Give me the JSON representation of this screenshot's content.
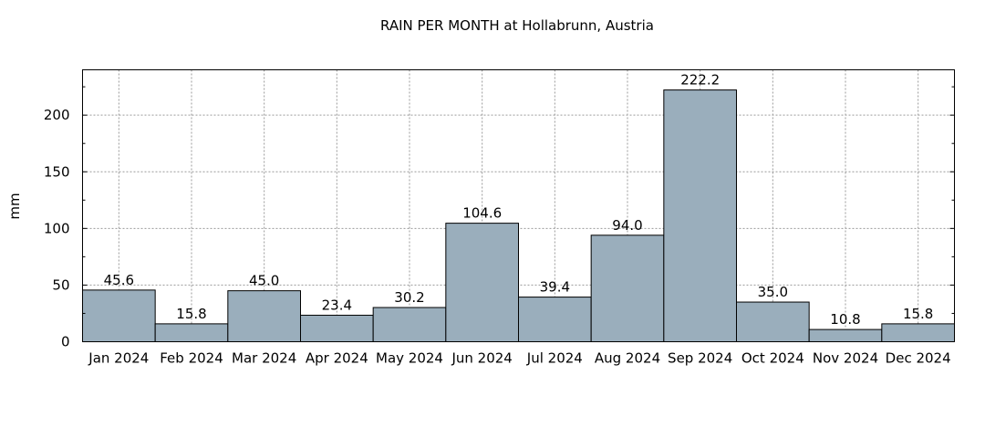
{
  "chart_data": {
    "type": "bar",
    "title": "RAIN PER MONTH at Hollabrunn, Austria",
    "xlabel": "",
    "ylabel": "mm",
    "ylim": [
      0,
      240
    ],
    "yticks": [
      0,
      50,
      100,
      150,
      200
    ],
    "grid": true,
    "bar_color": "#9aaebc",
    "categories": [
      "Jan 2024",
      "Feb 2024",
      "Mar 2024",
      "Apr 2024",
      "May 2024",
      "Jun 2024",
      "Jul 2024",
      "Aug 2024",
      "Sep 2024",
      "Oct 2024",
      "Nov 2024",
      "Dec 2024"
    ],
    "values": [
      45.6,
      15.8,
      45.0,
      23.4,
      30.2,
      104.6,
      39.4,
      94.0,
      222.2,
      35.0,
      10.8,
      15.8
    ],
    "value_labels": [
      "45.6",
      "15.8",
      "45.0",
      "23.4",
      "30.2",
      "104.6",
      "39.4",
      "94.0",
      "222.2",
      "35.0",
      "10.8",
      "15.8"
    ]
  }
}
